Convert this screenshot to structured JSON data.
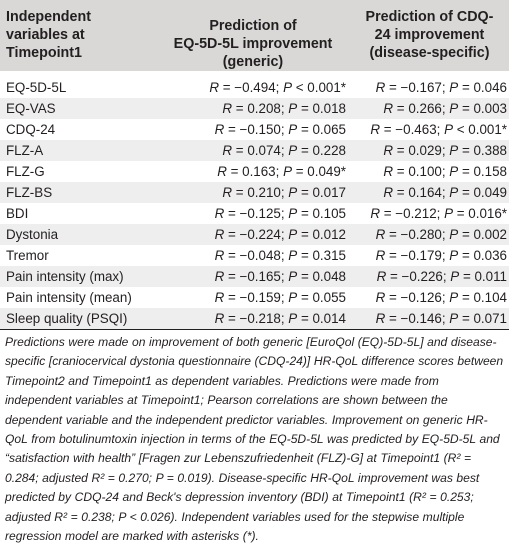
{
  "header": {
    "col0": "Independent\nvariables at\nTimepoint1",
    "col1": "Prediction of\nEQ-5D-5L improvement\n(generic)",
    "col2": "Prediction of CDQ-\n24 improvement\n(disease-specific)"
  },
  "rows": [
    {
      "variable": "EQ-5D-5L",
      "generic": "R = −0.494; P < 0.001*",
      "specific": "R = −0.167; P = 0.046"
    },
    {
      "variable": "EQ-VAS",
      "generic": "R = 0.208; P = 0.018",
      "specific": "R = 0.266; P = 0.003"
    },
    {
      "variable": "CDQ-24",
      "generic": "R = −0.150; P = 0.065",
      "specific": "R = −0.463; P < 0.001*"
    },
    {
      "variable": "FLZ-A",
      "generic": "R = 0.074; P = 0.228",
      "specific": "R = 0.029; P = 0.388"
    },
    {
      "variable": "FLZ-G",
      "generic": "R = 0.163; P = 0.049*",
      "specific": "R = 0.100; P = 0.158"
    },
    {
      "variable": "FLZ-BS",
      "generic": "R = 0.210; P = 0.017",
      "specific": "R = 0.164; P = 0.049"
    },
    {
      "variable": "BDI",
      "generic": "R = −0.125; P = 0.105",
      "specific": "R = −0.212; P = 0.016*"
    },
    {
      "variable": "Dystonia",
      "generic": "R = −0.224; P = 0.012",
      "specific": "R = −0.280; P = 0.002"
    },
    {
      "variable": "Tremor",
      "generic": "R = −0.048; P = 0.315",
      "specific": "R = −0.179; P = 0.036"
    },
    {
      "variable": "Pain intensity (max)",
      "generic": "R = −0.165; P = 0.048",
      "specific": "R = −0.226; P = 0.011"
    },
    {
      "variable": "Pain intensity (mean)",
      "generic": "R = −0.159; P = 0.055",
      "specific": "R = −0.126; P = 0.104"
    },
    {
      "variable": "Sleep quality (PSQI)",
      "generic": "R = −0.218; P = 0.014",
      "specific": "R = −0.146; P = 0.071"
    }
  ],
  "footnote": "Predictions were made on improvement of both generic [EuroQol (EQ)-5D-5L] and disease-specific [craniocervical dystonia questionnaire (CDQ-24)] HR-QoL difference scores between Timepoint2 and Timepoint1 as dependent variables. Predictions were made from independent variables at Timepoint1; Pearson correlations are shown between the dependent variable and the independent predictor variables. Improvement on generic HR-QoL from botulinumtoxin injection in terms of the EQ-5D-5L was predicted by EQ-5D-5L and “satisfaction with health” [Fragen zur Lebenszufriedenheit (FLZ)-G] at Timepoint1 (R² = 0.284; adjusted R² = 0.270; P = 0.019). Disease-specific HR-QoL improvement was best predicted by CDQ-24 and Beck's depression inventory (BDI) at Timepoint1 (R² = 0.253; adjusted R² = 0.238; P < 0.026). Independent variables used for the stepwise multiple regression model are marked with asterisks (*).",
  "colors": {
    "header_bg": "#d9d8d7",
    "row_alt_bg": "#eeeeee",
    "text": "#231f20"
  }
}
